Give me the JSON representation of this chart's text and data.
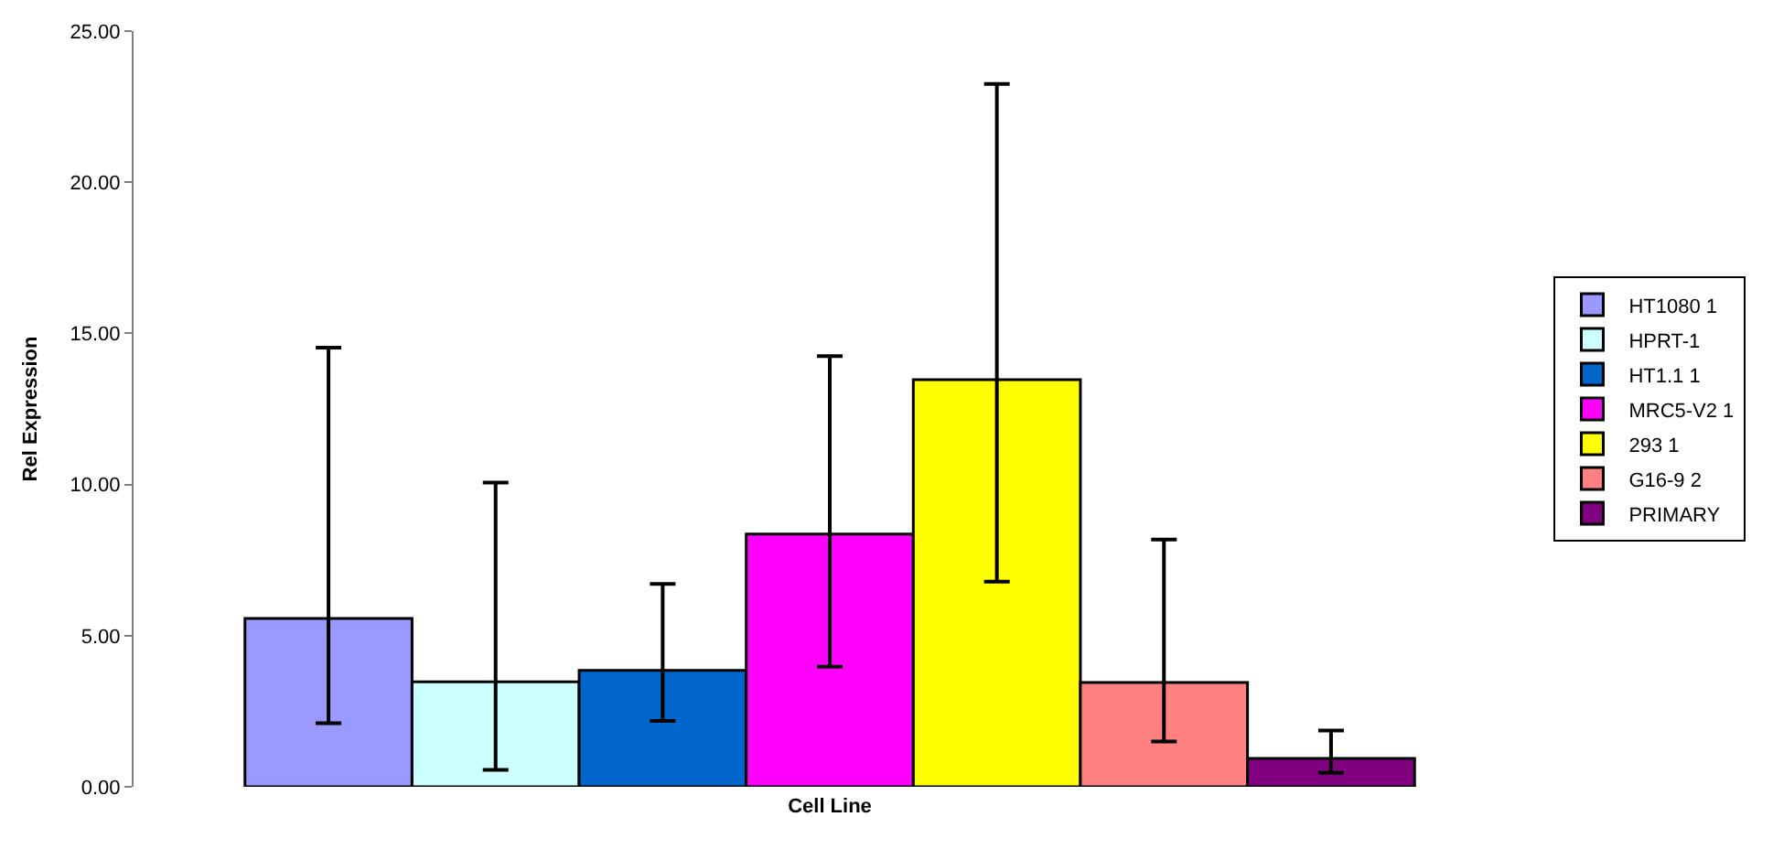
{
  "chart_data": {
    "type": "bar",
    "xlabel": "Cell Line",
    "ylabel": "Rel Expression",
    "categories": [
      null
    ],
    "series": [
      {
        "name": "HT1080 1",
        "color": "#9999ff",
        "values": [
          5.57
        ],
        "errors": [
          [
            2.1,
            14.53
          ]
        ]
      },
      {
        "name": "HPRT-1",
        "color": "#ccffff",
        "values": [
          3.47
        ],
        "errors": [
          [
            0.56,
            10.06
          ]
        ]
      },
      {
        "name": "HT1.1 1",
        "color": "#0066cc",
        "values": [
          3.85
        ],
        "errors": [
          [
            2.18,
            6.71
          ]
        ]
      },
      {
        "name": "MRC5-V2 1",
        "color": "#ff00ff",
        "values": [
          8.36
        ],
        "errors": [
          [
            3.97,
            14.25
          ]
        ]
      },
      {
        "name": "293 1",
        "color": "#ffff00",
        "values": [
          13.47
        ],
        "errors": [
          [
            6.79,
            23.25
          ]
        ]
      },
      {
        "name": "G16-9 2",
        "color": "#ff8080",
        "values": [
          3.45
        ],
        "errors": [
          [
            1.5,
            8.18
          ]
        ]
      },
      {
        "name": "PRIMARY",
        "color": "#800080",
        "values": [
          0.94
        ],
        "errors": [
          [
            0.46,
            1.86
          ]
        ]
      }
    ],
    "ylim": [
      0,
      25
    ],
    "yticks": [
      {
        "value": 0,
        "label": "0.00"
      },
      {
        "value": 5,
        "label": "5.00"
      },
      {
        "value": 10,
        "label": "10.00"
      },
      {
        "value": 15,
        "label": "15.00"
      },
      {
        "value": 20,
        "label": "20.00"
      },
      {
        "value": 25,
        "label": "25.00"
      }
    ],
    "legend": "right"
  }
}
